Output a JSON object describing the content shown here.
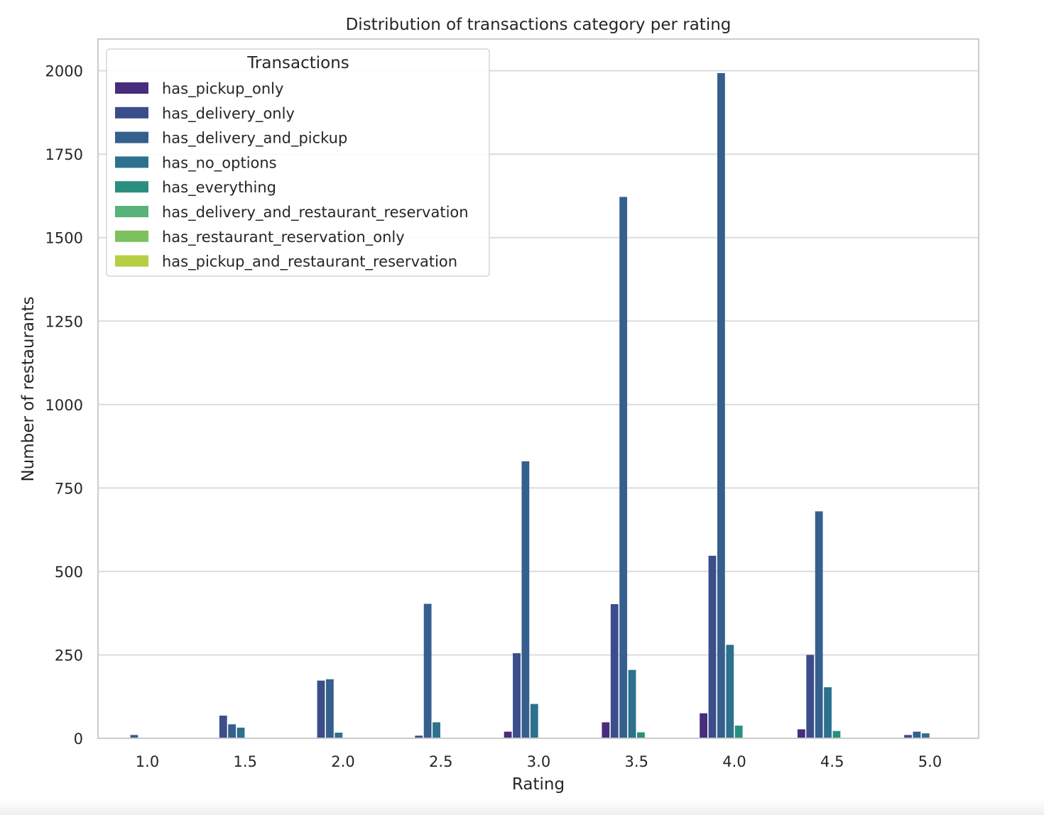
{
  "chart_data": {
    "type": "bar",
    "title": "Distribution of transactions category per rating",
    "xlabel": "Rating",
    "ylabel": "Number of restaurants",
    "categories": [
      "1.0",
      "1.5",
      "2.0",
      "2.5",
      "3.0",
      "3.5",
      "4.0",
      "4.5",
      "5.0"
    ],
    "ylim": [
      0,
      2095
    ],
    "yticks": [
      0,
      250,
      500,
      750,
      1000,
      1250,
      1500,
      1750,
      2000
    ],
    "grid": true,
    "legend": {
      "title": "Transactions",
      "placement": "top-left"
    },
    "series": [
      {
        "name": "has_pickup_only",
        "color": "#472d7b",
        "values": [
          0,
          0,
          0,
          0,
          20,
          48,
          75,
          27,
          0
        ]
      },
      {
        "name": "has_delivery_only",
        "color": "#3b4d8a",
        "values": [
          2,
          68,
          173,
          8,
          255,
          402,
          547,
          250,
          10
        ]
      },
      {
        "name": "has_delivery_and_pickup",
        "color": "#355f8d",
        "values": [
          10,
          42,
          177,
          403,
          830,
          1622,
          1993,
          680,
          20
        ]
      },
      {
        "name": "has_no_options",
        "color": "#2c718e",
        "values": [
          0,
          32,
          17,
          48,
          103,
          205,
          280,
          153,
          15
        ]
      },
      {
        "name": "has_everything",
        "color": "#2a8f7e",
        "values": [
          0,
          0,
          0,
          0,
          0,
          18,
          38,
          22,
          0
        ]
      },
      {
        "name": "has_delivery_and_restaurant_reservation",
        "color": "#58b27a",
        "values": [
          0,
          0,
          0,
          0,
          0,
          0,
          0,
          0,
          0
        ]
      },
      {
        "name": "has_restaurant_reservation_only",
        "color": "#7cc05f",
        "values": [
          0,
          0,
          0,
          0,
          0,
          0,
          0,
          0,
          0
        ]
      },
      {
        "name": "has_pickup_and_restaurant_reservation",
        "color": "#b4cf43",
        "values": [
          0,
          0,
          0,
          0,
          0,
          0,
          0,
          0,
          0
        ]
      }
    ]
  }
}
